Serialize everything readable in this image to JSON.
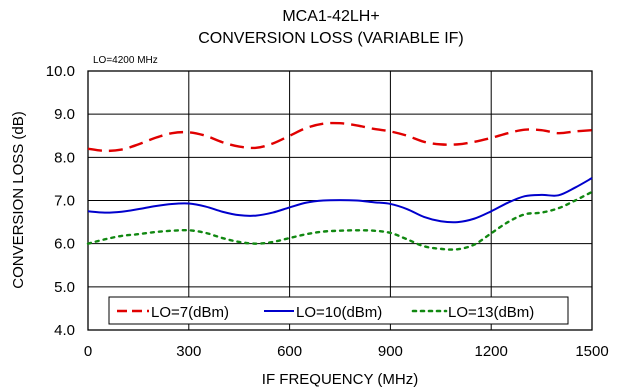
{
  "chart_data": {
    "type": "line",
    "title": "MCA1-42LH+",
    "subtitle": "CONVERSION LOSS (VARIABLE IF)",
    "annotation": "LO=4200 MHz",
    "xlabel": "IF FREQUENCY (MHz)",
    "ylabel": "CONVERSION LOSS (dB)",
    "xlim": [
      0,
      1500
    ],
    "ylim": [
      4.0,
      10.0
    ],
    "xticks": [
      "0",
      "300",
      "600",
      "900",
      "1200",
      "1500"
    ],
    "yticks": [
      "4.0",
      "5.0",
      "6.0",
      "7.0",
      "8.0",
      "9.0",
      "10.0"
    ],
    "grid": true,
    "legend_position": "bottom",
    "series": [
      {
        "name": "LO=7(dBm)",
        "color": "#e00000",
        "dash": "dashed",
        "x": [
          0,
          50,
          100,
          150,
          200,
          250,
          300,
          350,
          400,
          450,
          500,
          550,
          600,
          650,
          700,
          750,
          800,
          850,
          900,
          950,
          1000,
          1050,
          1100,
          1150,
          1200,
          1250,
          1300,
          1350,
          1400,
          1450,
          1500
        ],
        "y": [
          8.2,
          8.15,
          8.18,
          8.3,
          8.45,
          8.56,
          8.58,
          8.5,
          8.35,
          8.25,
          8.22,
          8.32,
          8.5,
          8.68,
          8.78,
          8.79,
          8.74,
          8.66,
          8.6,
          8.5,
          8.36,
          8.3,
          8.3,
          8.36,
          8.45,
          8.56,
          8.64,
          8.63,
          8.56,
          8.6,
          8.63
        ]
      },
      {
        "name": "LO=10(dBm)",
        "color": "#0000cc",
        "dash": "solid",
        "x": [
          0,
          50,
          100,
          150,
          200,
          250,
          300,
          350,
          400,
          450,
          500,
          550,
          600,
          650,
          700,
          750,
          800,
          850,
          900,
          950,
          1000,
          1050,
          1100,
          1150,
          1200,
          1250,
          1300,
          1350,
          1400,
          1450,
          1500
        ],
        "y": [
          6.75,
          6.72,
          6.74,
          6.8,
          6.87,
          6.92,
          6.93,
          6.86,
          6.74,
          6.66,
          6.65,
          6.72,
          6.84,
          6.95,
          7.0,
          7.01,
          7.0,
          6.96,
          6.92,
          6.8,
          6.62,
          6.52,
          6.5,
          6.58,
          6.75,
          6.95,
          7.1,
          7.13,
          7.12,
          7.3,
          7.52
        ]
      },
      {
        "name": "LO=13(dBm)",
        "color": "#118811",
        "dash": "dotted",
        "x": [
          0,
          50,
          100,
          150,
          200,
          250,
          300,
          350,
          400,
          450,
          500,
          550,
          600,
          650,
          700,
          750,
          800,
          850,
          900,
          950,
          1000,
          1050,
          1100,
          1150,
          1200,
          1250,
          1300,
          1350,
          1400,
          1450,
          1500
        ],
        "y": [
          6.0,
          6.1,
          6.18,
          6.22,
          6.27,
          6.3,
          6.31,
          6.25,
          6.13,
          6.04,
          6.0,
          6.04,
          6.13,
          6.22,
          6.28,
          6.3,
          6.31,
          6.3,
          6.25,
          6.1,
          5.94,
          5.88,
          5.87,
          5.98,
          6.24,
          6.5,
          6.68,
          6.72,
          6.82,
          7.0,
          7.2
        ]
      }
    ]
  }
}
